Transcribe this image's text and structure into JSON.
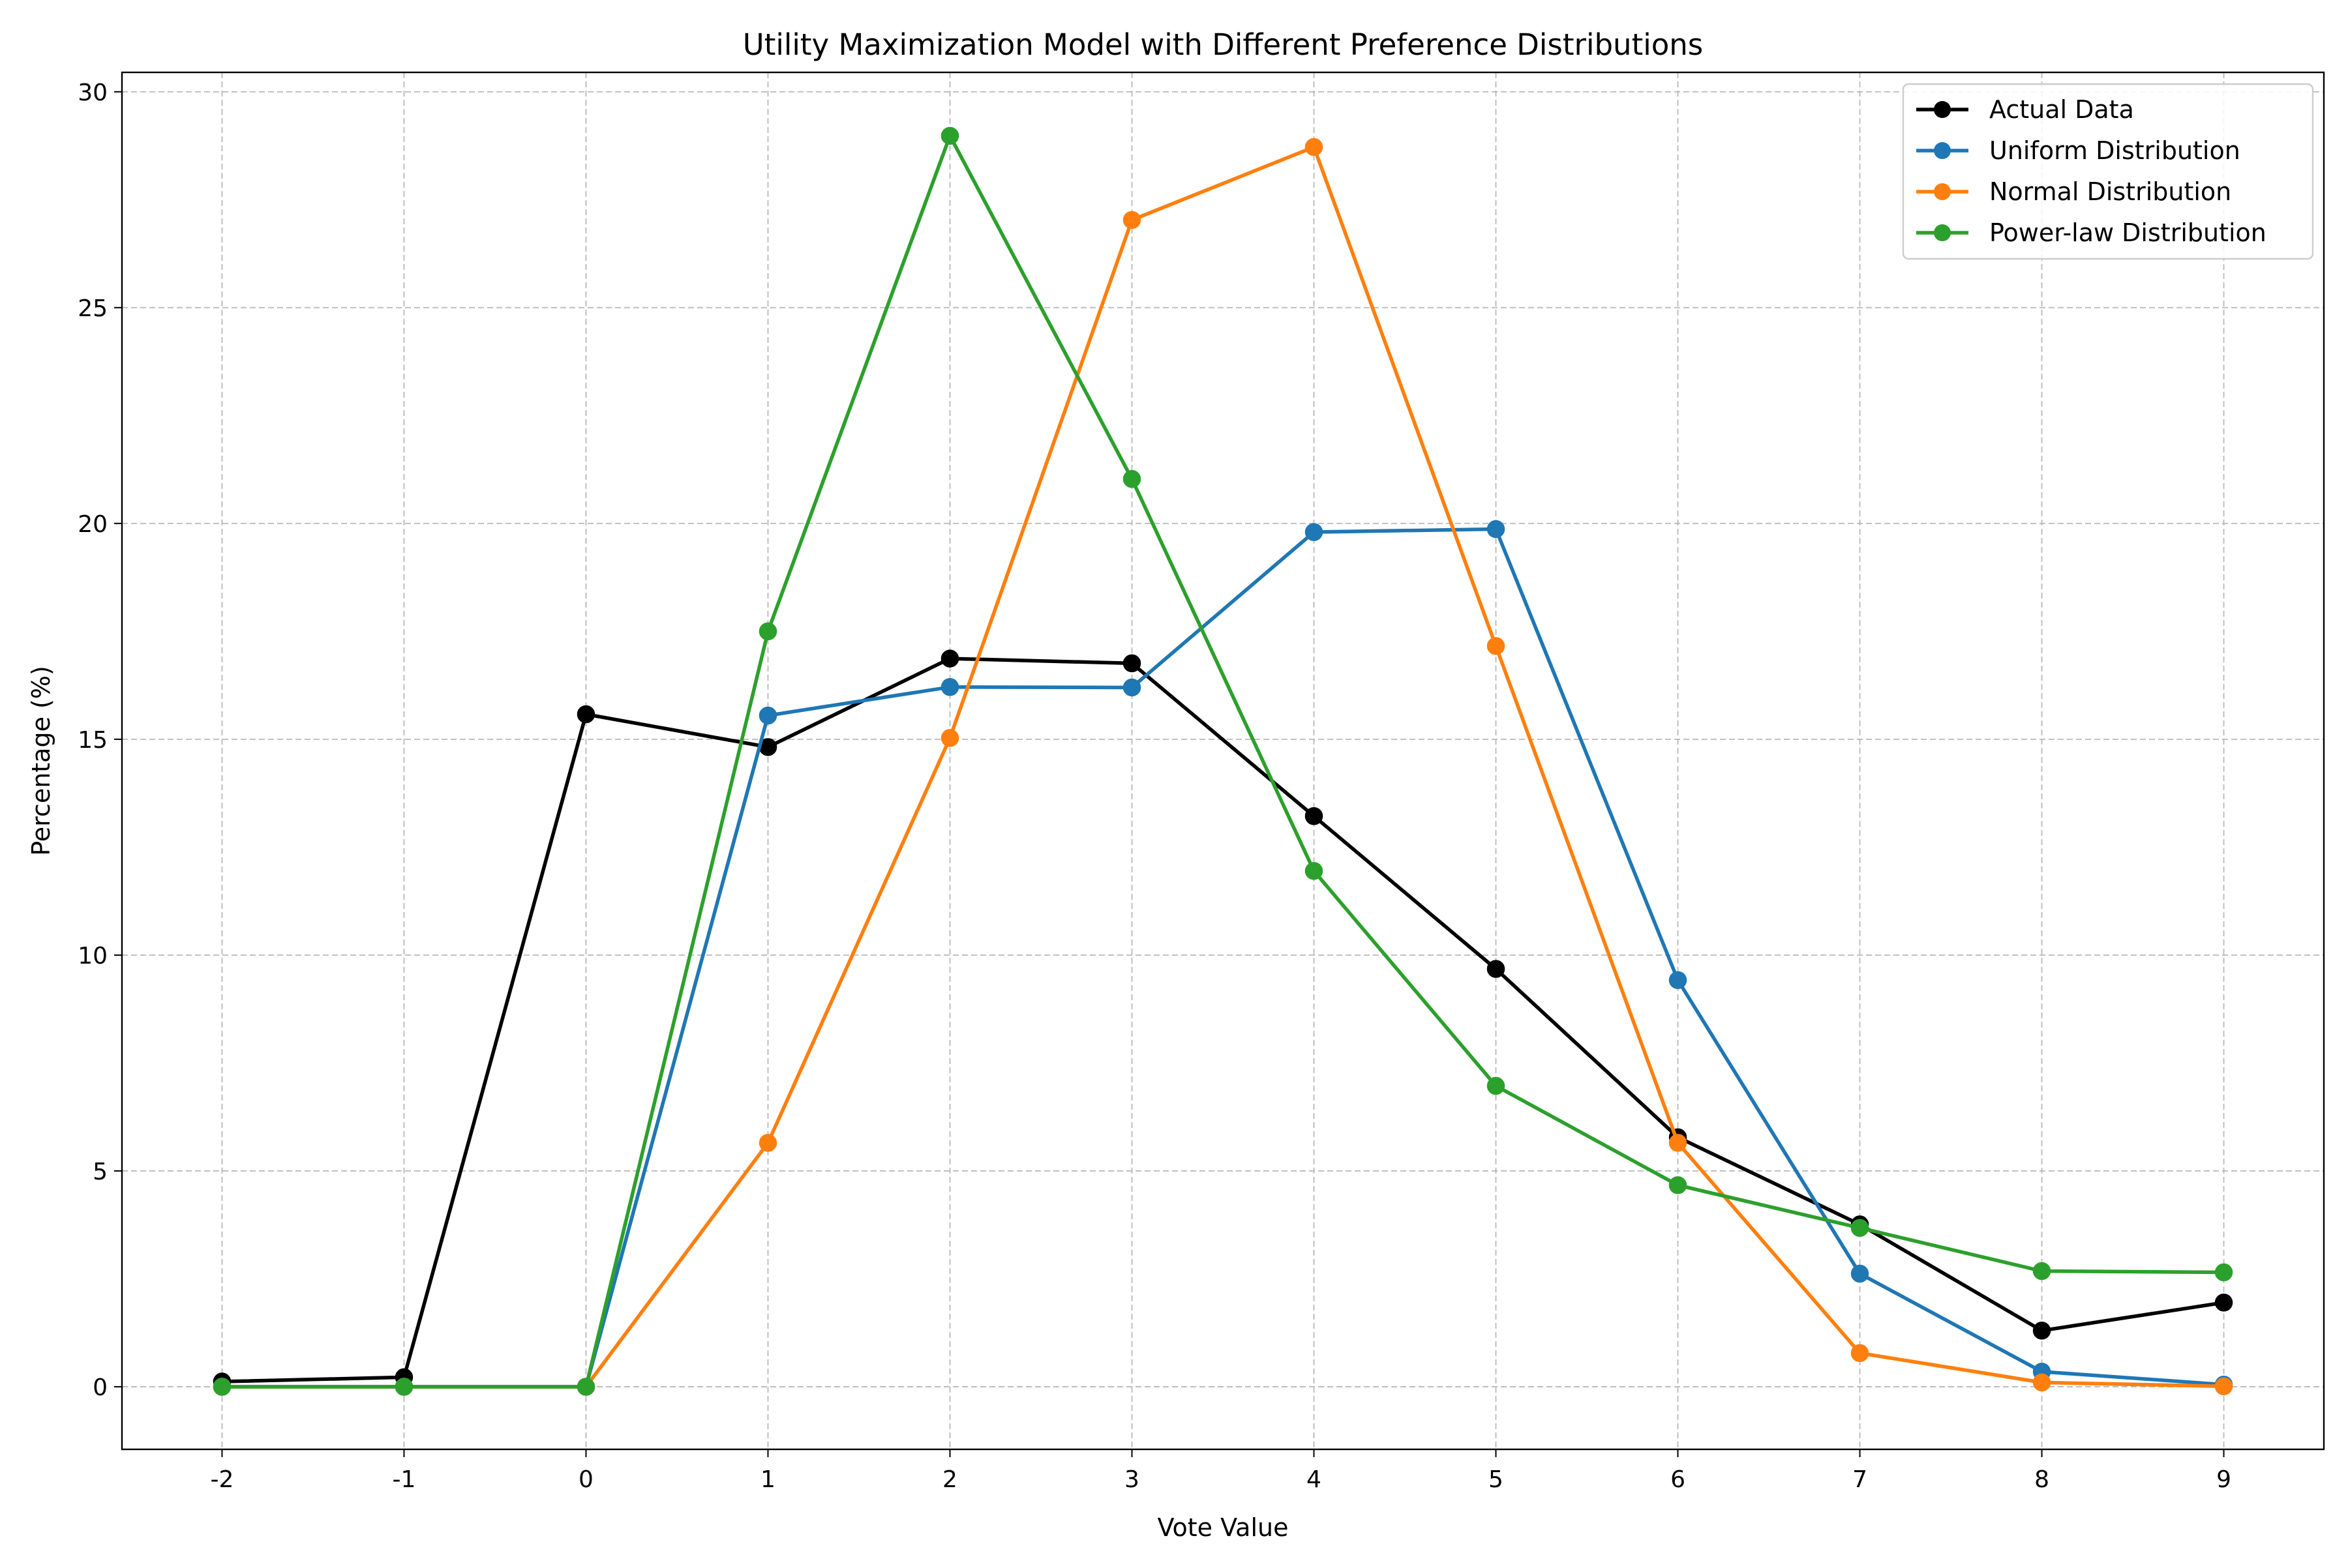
{
  "chart_data": {
    "type": "line",
    "title": "Utility Maximization Model with Different Preference Distributions",
    "xlabel": "Vote Value",
    "ylabel": "Percentage (%)",
    "x": [
      -2,
      -1,
      0,
      1,
      2,
      3,
      4,
      5,
      6,
      7,
      8,
      9
    ],
    "xticks": [
      "-2",
      "-1",
      "0",
      "1",
      "2",
      "3",
      "4",
      "5",
      "6",
      "7",
      "8",
      "9"
    ],
    "xlim": [
      -2.55,
      9.55
    ],
    "ylim": [
      -1.45,
      30.45
    ],
    "yticks": [
      "0",
      "5",
      "10",
      "15",
      "20",
      "25",
      "30"
    ],
    "grid": true,
    "legend_position": "top-right",
    "series": [
      {
        "name": "Actual Data",
        "color": "#000000",
        "values": [
          0.12,
          0.22,
          15.58,
          14.82,
          16.87,
          16.76,
          13.22,
          9.68,
          5.78,
          3.76,
          1.3,
          1.95
        ]
      },
      {
        "name": "Uniform Distribution",
        "color": "#1f77b4",
        "values": [
          0,
          0,
          0,
          15.55,
          16.21,
          16.2,
          19.8,
          19.87,
          9.42,
          2.62,
          0.35,
          0.05
        ]
      },
      {
        "name": "Normal Distribution",
        "color": "#ff7f0e",
        "values": [
          0,
          0,
          0,
          5.65,
          15.03,
          27.03,
          28.72,
          17.16,
          5.65,
          0.78,
          0.1,
          0.01
        ]
      },
      {
        "name": "Power-law Distribution",
        "color": "#2ca02c",
        "values": [
          0,
          0,
          0,
          17.5,
          28.98,
          21.03,
          11.95,
          6.97,
          4.67,
          3.68,
          2.68,
          2.65
        ]
      }
    ]
  }
}
